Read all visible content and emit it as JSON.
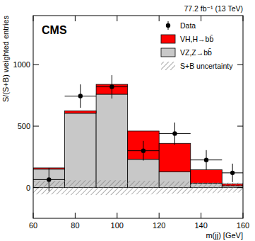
{
  "chart_data": {
    "type": "histogram",
    "title": "CMS",
    "subtitle": "77.2 fb⁻¹ (13 TeV)",
    "x_label": "m(jj) [GeV]",
    "y_label": "S/(S+B) weighted entries",
    "bins": [
      60,
      75,
      90,
      105,
      120,
      135,
      150,
      160
    ],
    "xlim": [
      60,
      160
    ],
    "xticks": [
      60,
      80,
      100,
      120,
      140,
      160
    ],
    "ylim": [
      -250,
      1400
    ],
    "yticks": [
      0,
      500,
      1000
    ],
    "stacked": true,
    "legend": "top-right",
    "series": [
      {
        "name": "Data",
        "type": "scatter",
        "marker": "circle",
        "color": "#000000",
        "values": [
          65,
          745,
          820,
          300,
          440,
          225,
          120
        ],
        "errors": [
          95,
          95,
          95,
          80,
          90,
          80,
          75
        ]
      },
      {
        "name": "VH,H→bb̄",
        "type": "bar",
        "color": "#ff0000",
        "values": [
          10,
          20,
          80,
          230,
          230,
          110,
          15
        ]
      },
      {
        "name": "VZ,Z→bb̄",
        "type": "bar",
        "color": "#c8c8c8",
        "values": [
          150,
          605,
          760,
          230,
          130,
          35,
          15
        ]
      },
      {
        "name": "S+B uncertainty",
        "type": "band",
        "color": "#777777",
        "values": [
          55,
          60,
          60,
          55,
          50,
          45,
          40
        ]
      }
    ]
  }
}
